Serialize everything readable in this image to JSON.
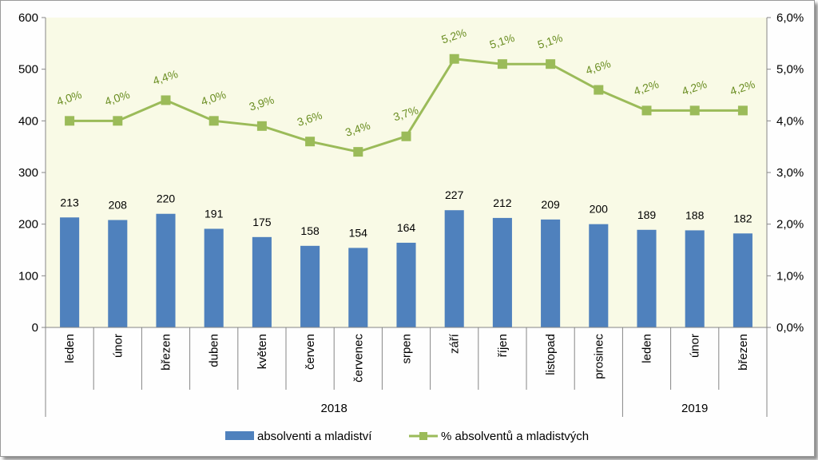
{
  "chart_data": {
    "type": "bar",
    "categories": [
      "leden",
      "únor",
      "březen",
      "duben",
      "květen",
      "červen",
      "červenec",
      "srpen",
      "září",
      "říjen",
      "listopad",
      "prosinec",
      "leden",
      "únor",
      "březen"
    ],
    "year_groups": [
      {
        "label": "2018",
        "count": 12
      },
      {
        "label": "2019",
        "count": 3
      }
    ],
    "series": [
      {
        "name": "absolventi a mladiství",
        "type": "bar",
        "axis": "left",
        "color": "#4f81bd",
        "values": [
          213,
          208,
          220,
          191,
          175,
          158,
          154,
          164,
          227,
          212,
          209,
          200,
          189,
          188,
          182
        ],
        "labels": [
          "213",
          "208",
          "220",
          "191",
          "175",
          "158",
          "154",
          "164",
          "227",
          "212",
          "209",
          "200",
          "189",
          "188",
          "182"
        ]
      },
      {
        "name": "% absolventů a mladistvých",
        "type": "line",
        "axis": "right",
        "color": "#9bbb59",
        "values": [
          4.0,
          4.0,
          4.4,
          4.0,
          3.9,
          3.6,
          3.4,
          3.7,
          5.2,
          5.1,
          5.1,
          4.6,
          4.2,
          4.2,
          4.2
        ],
        "labels": [
          "4,0%",
          "4,0%",
          "4,4%",
          "4,0%",
          "3,9%",
          "3,6%",
          "3,4%",
          "3,7%",
          "5,2%",
          "5,1%",
          "5,1%",
          "4,6%",
          "4,2%",
          "4,2%",
          "4,2%"
        ]
      }
    ],
    "left_axis": {
      "min": 0,
      "max": 600,
      "ticks": [
        "0",
        "100",
        "200",
        "300",
        "400",
        "500",
        "600"
      ]
    },
    "right_axis": {
      "min": 0,
      "max": 6,
      "ticks": [
        "0,0%",
        "1,0%",
        "2,0%",
        "3,0%",
        "4,0%",
        "5,0%",
        "6,0%"
      ]
    },
    "plot_background": "#f9fae6",
    "legend_position": "bottom",
    "grid": false
  }
}
